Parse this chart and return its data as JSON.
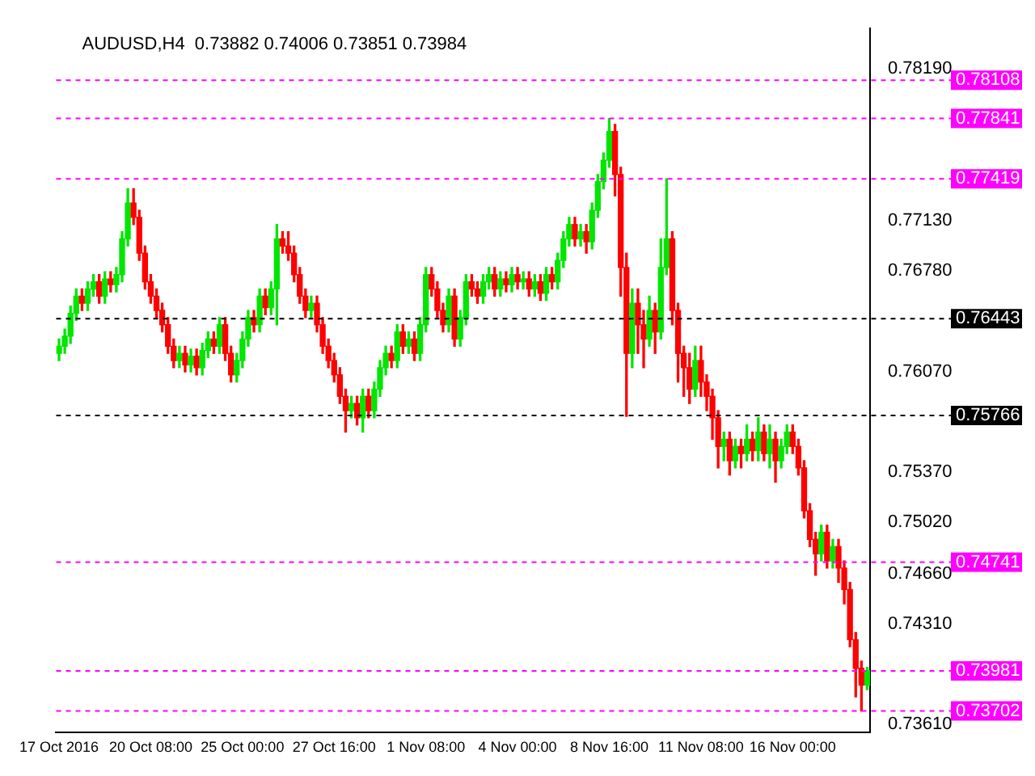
{
  "chart_data": {
    "type": "candlestick",
    "title": "AUDUSD,H4  0.73882 0.74006 0.73851 0.73984",
    "categories": [
      "17 Oct 2016",
      null,
      null,
      null,
      null,
      null,
      null,
      null,
      null,
      null,
      null,
      null,
      null,
      null,
      null,
      null,
      "20 Oct 08:00",
      null,
      null,
      null,
      null,
      null,
      null,
      null,
      null,
      null,
      null,
      null,
      null,
      null,
      null,
      null,
      "25 Oct 00:00",
      null,
      null,
      null,
      null,
      null,
      null,
      null,
      null,
      null,
      null,
      null,
      null,
      null,
      null,
      null,
      "27 Oct 16:00",
      null,
      null,
      null,
      null,
      null,
      null,
      null,
      null,
      null,
      null,
      null,
      null,
      null,
      null,
      null,
      "1 Nov 08:00",
      null,
      null,
      null,
      null,
      null,
      null,
      null,
      null,
      null,
      null,
      null,
      null,
      null,
      null,
      null,
      "4 Nov 00:00",
      null,
      null,
      null,
      null,
      null,
      null,
      null,
      null,
      null,
      null,
      null,
      null,
      null,
      null,
      null,
      "8 Nov 16:00",
      null,
      null,
      null,
      null,
      null,
      null,
      null,
      null,
      null,
      null,
      null,
      null,
      null,
      null,
      null,
      "11 Nov 08:00",
      null,
      null,
      null,
      null,
      null,
      null,
      null,
      null,
      null,
      null,
      null,
      null,
      null,
      null,
      null,
      "16 Nov 00:00",
      null,
      null,
      null,
      null,
      null,
      null,
      null,
      null,
      null,
      null,
      null,
      null,
      null
    ],
    "ohlc": [
      [
        0.762,
        0.763,
        0.7615,
        0.7625
      ],
      [
        0.7625,
        0.7637,
        0.762,
        0.7632
      ],
      [
        0.7632,
        0.7653,
        0.7627,
        0.7648
      ],
      [
        0.7648,
        0.7665,
        0.7643,
        0.766
      ],
      [
        0.766,
        0.7665,
        0.765,
        0.7655
      ],
      [
        0.7655,
        0.767,
        0.765,
        0.7665
      ],
      [
        0.7665,
        0.7675,
        0.766,
        0.767
      ],
      [
        0.767,
        0.7675,
        0.7655,
        0.766
      ],
      [
        0.766,
        0.7677,
        0.7655,
        0.7672
      ],
      [
        0.7672,
        0.7677,
        0.7663,
        0.7668
      ],
      [
        0.7668,
        0.768,
        0.7663,
        0.7675
      ],
      [
        0.7675,
        0.7705,
        0.767,
        0.77
      ],
      [
        0.77,
        0.7735,
        0.7695,
        0.7725
      ],
      [
        0.7725,
        0.7735,
        0.771,
        0.7715
      ],
      [
        0.7715,
        0.772,
        0.7685,
        0.769
      ],
      [
        0.769,
        0.7695,
        0.7665,
        0.767
      ],
      [
        0.767,
        0.7675,
        0.7655,
        0.766
      ],
      [
        0.766,
        0.7665,
        0.7645,
        0.765
      ],
      [
        0.765,
        0.7655,
        0.7635,
        0.764
      ],
      [
        0.764,
        0.7645,
        0.762,
        0.7625
      ],
      [
        0.7625,
        0.763,
        0.761,
        0.7615
      ],
      [
        0.7615,
        0.7625,
        0.761,
        0.762
      ],
      [
        0.762,
        0.7625,
        0.7607,
        0.7612
      ],
      [
        0.7612,
        0.7623,
        0.7607,
        0.7618
      ],
      [
        0.7618,
        0.7623,
        0.7605,
        0.761
      ],
      [
        0.761,
        0.7627,
        0.7605,
        0.7622
      ],
      [
        0.7622,
        0.7635,
        0.7617,
        0.763
      ],
      [
        0.763,
        0.7635,
        0.762,
        0.7625
      ],
      [
        0.7625,
        0.7645,
        0.762,
        0.764
      ],
      [
        0.764,
        0.7645,
        0.7615,
        0.762
      ],
      [
        0.762,
        0.7625,
        0.76,
        0.7605
      ],
      [
        0.7605,
        0.762,
        0.76,
        0.7615
      ],
      [
        0.7615,
        0.7635,
        0.761,
        0.763
      ],
      [
        0.763,
        0.765,
        0.7625,
        0.7645
      ],
      [
        0.7645,
        0.765,
        0.7635,
        0.764
      ],
      [
        0.764,
        0.7665,
        0.7635,
        0.766
      ],
      [
        0.766,
        0.7665,
        0.7647,
        0.7652
      ],
      [
        0.7652,
        0.767,
        0.7647,
        0.7665
      ],
      [
        0.7665,
        0.771,
        0.764,
        0.77
      ],
      [
        0.77,
        0.7705,
        0.769,
        0.7695
      ],
      [
        0.7695,
        0.7705,
        0.7685,
        0.769
      ],
      [
        0.769,
        0.7695,
        0.767,
        0.7675
      ],
      [
        0.7675,
        0.768,
        0.7655,
        0.766
      ],
      [
        0.766,
        0.7665,
        0.7645,
        0.765
      ],
      [
        0.765,
        0.766,
        0.7645,
        0.7655
      ],
      [
        0.7655,
        0.766,
        0.7635,
        0.764
      ],
      [
        0.764,
        0.7645,
        0.762,
        0.7625
      ],
      [
        0.7625,
        0.763,
        0.761,
        0.7615
      ],
      [
        0.7615,
        0.762,
        0.76,
        0.7605
      ],
      [
        0.7605,
        0.761,
        0.7585,
        0.759
      ],
      [
        0.759,
        0.7595,
        0.7565,
        0.758
      ],
      [
        0.758,
        0.759,
        0.7575,
        0.7585
      ],
      [
        0.7585,
        0.759,
        0.757,
        0.7575
      ],
      [
        0.7575,
        0.7595,
        0.7565,
        0.759
      ],
      [
        0.759,
        0.7595,
        0.7575,
        0.758
      ],
      [
        0.758,
        0.76,
        0.7575,
        0.7595
      ],
      [
        0.7595,
        0.7615,
        0.759,
        0.761
      ],
      [
        0.761,
        0.7625,
        0.7605,
        0.762
      ],
      [
        0.762,
        0.7625,
        0.761,
        0.7615
      ],
      [
        0.7615,
        0.764,
        0.761,
        0.7635
      ],
      [
        0.7635,
        0.764,
        0.762,
        0.7625
      ],
      [
        0.7625,
        0.7635,
        0.762,
        0.763
      ],
      [
        0.763,
        0.7635,
        0.7615,
        0.762
      ],
      [
        0.762,
        0.7645,
        0.7615,
        0.764
      ],
      [
        0.764,
        0.768,
        0.7635,
        0.7675
      ],
      [
        0.7675,
        0.768,
        0.766,
        0.7665
      ],
      [
        0.7665,
        0.767,
        0.7645,
        0.765
      ],
      [
        0.765,
        0.7655,
        0.7635,
        0.764
      ],
      [
        0.764,
        0.7665,
        0.7635,
        0.766
      ],
      [
        0.766,
        0.7665,
        0.7625,
        0.763
      ],
      [
        0.763,
        0.765,
        0.7625,
        0.7645
      ],
      [
        0.7645,
        0.7675,
        0.764,
        0.767
      ],
      [
        0.767,
        0.7675,
        0.766,
        0.7665
      ],
      [
        0.7665,
        0.767,
        0.7655,
        0.766
      ],
      [
        0.766,
        0.7675,
        0.7655,
        0.767
      ],
      [
        0.767,
        0.768,
        0.7665,
        0.7675
      ],
      [
        0.7675,
        0.768,
        0.766,
        0.7665
      ],
      [
        0.7665,
        0.7677,
        0.766,
        0.7672
      ],
      [
        0.7672,
        0.7677,
        0.7663,
        0.7668
      ],
      [
        0.7668,
        0.768,
        0.7663,
        0.7675
      ],
      [
        0.7675,
        0.768,
        0.7665,
        0.767
      ],
      [
        0.767,
        0.7677,
        0.7665,
        0.7672
      ],
      [
        0.7672,
        0.7677,
        0.766,
        0.7665
      ],
      [
        0.7665,
        0.7675,
        0.766,
        0.767
      ],
      [
        0.767,
        0.7675,
        0.7657,
        0.7662
      ],
      [
        0.7662,
        0.768,
        0.7657,
        0.7675
      ],
      [
        0.7675,
        0.768,
        0.7665,
        0.767
      ],
      [
        0.767,
        0.769,
        0.7665,
        0.7685
      ],
      [
        0.7685,
        0.7705,
        0.768,
        0.77
      ],
      [
        0.77,
        0.7715,
        0.7695,
        0.771
      ],
      [
        0.771,
        0.7715,
        0.7695,
        0.77
      ],
      [
        0.77,
        0.771,
        0.7695,
        0.7705
      ],
      [
        0.7705,
        0.771,
        0.769,
        0.7698
      ],
      [
        0.7698,
        0.7725,
        0.7693,
        0.772
      ],
      [
        0.772,
        0.7745,
        0.7715,
        0.774
      ],
      [
        0.774,
        0.776,
        0.7735,
        0.7755
      ],
      [
        0.7755,
        0.7784,
        0.775,
        0.7775
      ],
      [
        0.7775,
        0.778,
        0.773,
        0.7745
      ],
      [
        0.7745,
        0.775,
        0.766,
        0.768
      ],
      [
        0.768,
        0.769,
        0.7576,
        0.762
      ],
      [
        0.762,
        0.7665,
        0.761,
        0.7655
      ],
      [
        0.7655,
        0.7665,
        0.762,
        0.764
      ],
      [
        0.764,
        0.765,
        0.761,
        0.763
      ],
      [
        0.763,
        0.766,
        0.7625,
        0.765
      ],
      [
        0.765,
        0.7655,
        0.762,
        0.7635
      ],
      [
        0.7635,
        0.77,
        0.763,
        0.768
      ],
      [
        0.768,
        0.7742,
        0.7675,
        0.77
      ],
      [
        0.77,
        0.7705,
        0.764,
        0.765
      ],
      [
        0.765,
        0.7655,
        0.76,
        0.762
      ],
      [
        0.762,
        0.7625,
        0.759,
        0.761
      ],
      [
        0.761,
        0.762,
        0.7585,
        0.7595
      ],
      [
        0.7595,
        0.7625,
        0.759,
        0.7615
      ],
      [
        0.7615,
        0.7625,
        0.759,
        0.76
      ],
      [
        0.76,
        0.7605,
        0.758,
        0.759
      ],
      [
        0.759,
        0.7595,
        0.756,
        0.7575
      ],
      [
        0.7575,
        0.758,
        0.754,
        0.7555
      ],
      [
        0.7555,
        0.7565,
        0.7545,
        0.756
      ],
      [
        0.756,
        0.7565,
        0.7535,
        0.7545
      ],
      [
        0.7545,
        0.756,
        0.754,
        0.7555
      ],
      [
        0.7555,
        0.756,
        0.754,
        0.755
      ],
      [
        0.755,
        0.757,
        0.7545,
        0.756
      ],
      [
        0.756,
        0.7565,
        0.7545,
        0.7552
      ],
      [
        0.7552,
        0.7575,
        0.7545,
        0.7565
      ],
      [
        0.7565,
        0.757,
        0.7545,
        0.755
      ],
      [
        0.755,
        0.757,
        0.754,
        0.756
      ],
      [
        0.756,
        0.7565,
        0.753,
        0.7545
      ],
      [
        0.7545,
        0.756,
        0.754,
        0.7555
      ],
      [
        0.7555,
        0.757,
        0.755,
        0.7565
      ],
      [
        0.7565,
        0.757,
        0.755,
        0.7555
      ],
      [
        0.7555,
        0.756,
        0.7535,
        0.754
      ],
      [
        0.754,
        0.7545,
        0.7505,
        0.751
      ],
      [
        0.751,
        0.7515,
        0.7485,
        0.749
      ],
      [
        0.749,
        0.7495,
        0.7465,
        0.748
      ],
      [
        0.748,
        0.75,
        0.7475,
        0.7495
      ],
      [
        0.7495,
        0.75,
        0.747,
        0.7475
      ],
      [
        0.7475,
        0.749,
        0.747,
        0.7485
      ],
      [
        0.7485,
        0.749,
        0.746,
        0.747
      ],
      [
        0.747,
        0.7475,
        0.7445,
        0.7455
      ],
      [
        0.7455,
        0.746,
        0.7415,
        0.742
      ],
      [
        0.742,
        0.7425,
        0.738,
        0.74
      ],
      [
        0.74,
        0.7405,
        0.73702,
        0.73882
      ],
      [
        0.73882,
        0.74006,
        0.73851,
        0.73984
      ]
    ],
    "ylim": [
      0.7355,
      0.7847
    ],
    "yticks": [
      {
        "value": 0.7819,
        "label": "0.78190"
      },
      {
        "value": 0.7713,
        "label": "0.77130"
      },
      {
        "value": 0.7678,
        "label": "0.76780"
      },
      {
        "value": 0.7607,
        "label": "0.76070"
      },
      {
        "value": 0.7537,
        "label": "0.75370"
      },
      {
        "value": 0.7502,
        "label": "0.75020"
      },
      {
        "value": 0.7466,
        "label": "0.74660"
      },
      {
        "value": 0.7431,
        "label": "0.74310"
      },
      {
        "value": 0.7361,
        "label": "0.73610"
      }
    ],
    "ref_lines": [
      {
        "axis": "y",
        "value": 0.78108,
        "label": "0.78108",
        "color": "#ff00ff",
        "line_style": "dashed"
      },
      {
        "axis": "y",
        "value": 0.77841,
        "label": "0.77841",
        "color": "#ff00ff",
        "line_style": "dashed"
      },
      {
        "axis": "y",
        "value": 0.77419,
        "label": "0.77419",
        "color": "#ff00ff",
        "line_style": "dashed"
      },
      {
        "axis": "y",
        "value": 0.76443,
        "label": "0.76443",
        "color": "#000000",
        "line_style": "dashed"
      },
      {
        "axis": "y",
        "value": 0.75766,
        "label": "0.75766",
        "color": "#000000",
        "line_style": "dashed"
      },
      {
        "axis": "y",
        "value": 0.74741,
        "label": "0.74741",
        "color": "#ff00ff",
        "line_style": "dashed"
      },
      {
        "axis": "y",
        "value": 0.73981,
        "label": "0.73981",
        "color": "#ff00ff",
        "line_style": "dashed"
      },
      {
        "axis": "y",
        "value": 0.73702,
        "label": "0.73702",
        "color": "#ff00ff",
        "line_style": "dashed"
      }
    ],
    "grid": false,
    "legend": false
  }
}
